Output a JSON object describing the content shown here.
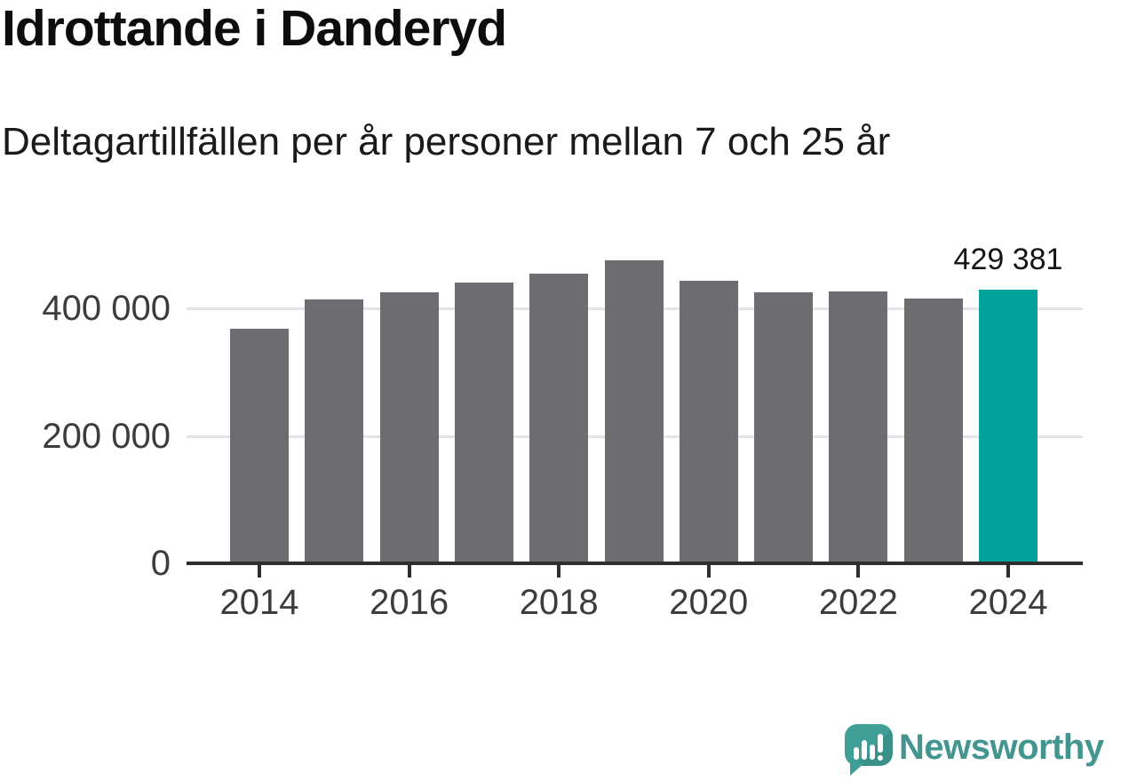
{
  "chart_data": {
    "type": "bar",
    "title": "Idrottande i Danderyd",
    "subtitle": "Deltagartillfällen per år personer mellan 7 och 25 år",
    "xlabel": "",
    "ylabel": "",
    "categories": [
      "2014",
      "2015",
      "2016",
      "2017",
      "2018",
      "2019",
      "2020",
      "2021",
      "2022",
      "2023",
      "2024"
    ],
    "values": [
      368000,
      414000,
      425000,
      441000,
      454000,
      475000,
      443000,
      425000,
      427000,
      415000,
      429381
    ],
    "highlight_index": 10,
    "highlight_label": "429 381",
    "x_tick_labels": [
      "2014",
      "2016",
      "2018",
      "2020",
      "2022",
      "2024"
    ],
    "y_ticks": [
      {
        "value": 0,
        "label": "0"
      },
      {
        "value": 200000,
        "label": "200 000"
      },
      {
        "value": 400000,
        "label": "400 000"
      }
    ],
    "ylim": [
      0,
      507000
    ],
    "grid": "horizontal",
    "legend": "none",
    "colors": {
      "bar": "#6c6c71",
      "highlight": "#00a39c",
      "grid": "#e4e4e4",
      "axis": "#2d2d2d",
      "tick_text": "#3c3c3c"
    }
  },
  "branding": {
    "wordmark": "Newsworthy",
    "logo_icon": "newsworthy-speech-bubble-chart-icon",
    "colors": {
      "bubble": "#3f9f97",
      "wordmark": "#43968f"
    }
  }
}
